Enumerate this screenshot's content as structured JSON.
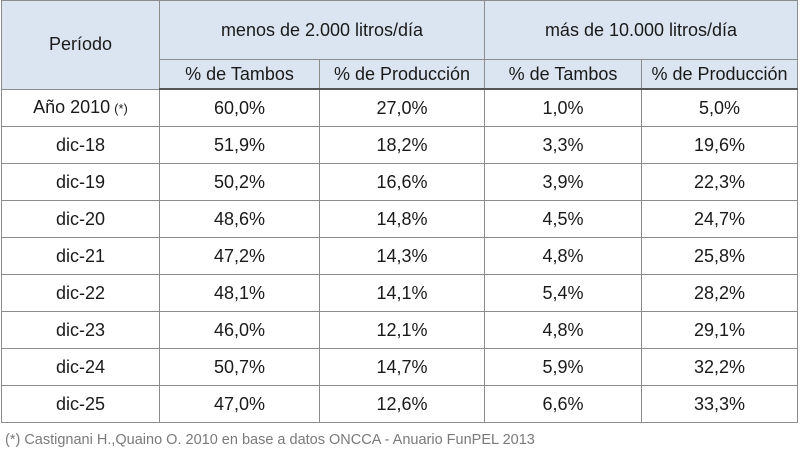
{
  "table": {
    "period_header": "Período",
    "group1_header": "menos de 2.000 litros/día",
    "group2_header": "más de 10.000 litros/día",
    "sub_headers": [
      "% de Tambos",
      "% de Producción",
      "% de Tambos",
      "% de Producción"
    ],
    "rows": [
      {
        "period": "Año 2010",
        "note": "(*)",
        "values": [
          "60,0%",
          "27,0%",
          "1,0%",
          "5,0%"
        ]
      },
      {
        "period": "dic-18",
        "note": "",
        "values": [
          "51,9%",
          "18,2%",
          "3,3%",
          "19,6%"
        ]
      },
      {
        "period": "dic-19",
        "note": "",
        "values": [
          "50,2%",
          "16,6%",
          "3,9%",
          "22,3%"
        ]
      },
      {
        "period": "dic-20",
        "note": "",
        "values": [
          "48,6%",
          "14,8%",
          "4,5%",
          "24,7%"
        ]
      },
      {
        "period": "dic-21",
        "note": "",
        "values": [
          "47,2%",
          "14,3%",
          "4,8%",
          "25,8%"
        ]
      },
      {
        "period": "dic-22",
        "note": "",
        "values": [
          "48,1%",
          "14,1%",
          "5,4%",
          "28,2%"
        ]
      },
      {
        "period": "dic-23",
        "note": "",
        "values": [
          "46,0%",
          "12,1%",
          "4,8%",
          "29,1%"
        ]
      },
      {
        "period": "dic-24",
        "note": "",
        "values": [
          "50,7%",
          "14,7%",
          "5,9%",
          "32,2%"
        ]
      },
      {
        "period": "dic-25",
        "note": "",
        "values": [
          "47,0%",
          "12,6%",
          "6,6%",
          "33,3%"
        ]
      }
    ]
  },
  "footnote": "(*) Castignani H.,Quaino O. 2010 en base a datos ONCCA - Anuario FunPEL 2013",
  "colors": {
    "header_bg": "#dbe5f1",
    "border": "#8c8c8c",
    "footnote_text": "#7a7a7a"
  }
}
